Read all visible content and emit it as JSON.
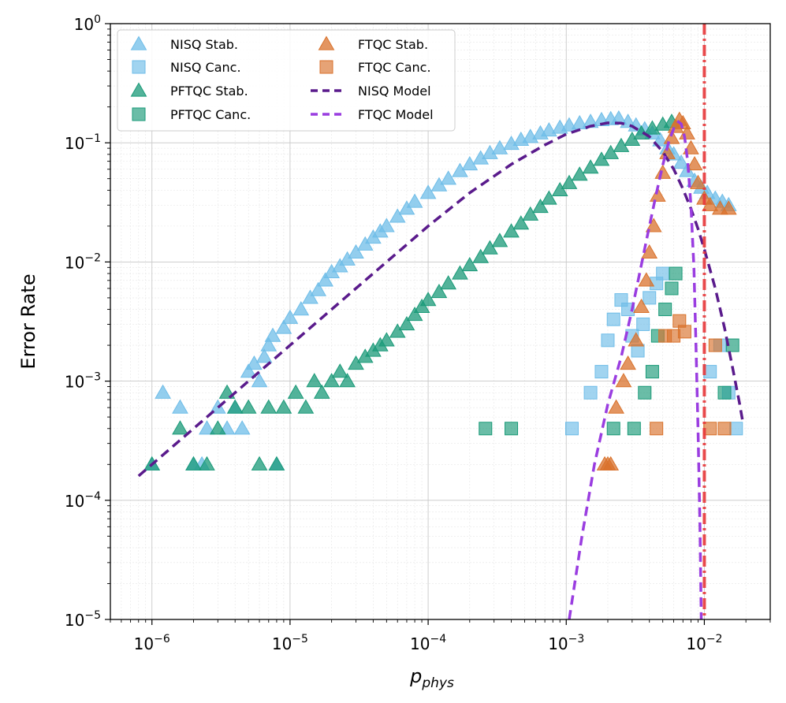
{
  "chart_data": {
    "type": "scatter",
    "xscale": "log",
    "yscale": "log",
    "xlim": [
      5e-07,
      0.03
    ],
    "ylim": [
      1e-05,
      1
    ],
    "x_major_ticks": [
      {
        "value": 1e-06,
        "base": "10",
        "exp": "−6"
      },
      {
        "value": 1e-05,
        "base": "10",
        "exp": "−5"
      },
      {
        "value": 0.0001,
        "base": "10",
        "exp": "−4"
      },
      {
        "value": 0.001,
        "base": "10",
        "exp": "−3"
      },
      {
        "value": 0.01,
        "base": "10",
        "exp": "−2"
      }
    ],
    "y_major_ticks": [
      {
        "value": 1e-05,
        "base": "10",
        "exp": "−5"
      },
      {
        "value": 0.0001,
        "base": "10",
        "exp": "−4"
      },
      {
        "value": 0.001,
        "base": "10",
        "exp": "−3"
      },
      {
        "value": 0.01,
        "base": "10",
        "exp": "−2"
      },
      {
        "value": 0.1,
        "base": "10",
        "exp": "−1"
      },
      {
        "value": 1,
        "base": "10",
        "exp": "0"
      }
    ],
    "xlabel_main": "p",
    "xlabel_sub": "phys",
    "ylabel": "Error Rate",
    "grid": true,
    "legend_position": "upper-left",
    "threshold_line": {
      "x": 0.01,
      "color": "#e8393b",
      "style": "dash-dot"
    },
    "colors": {
      "nisq": "#6fbde8",
      "pftqc": "#1a9a78",
      "ftqc": "#d9722c",
      "nisq_model": "#5a1b8c",
      "ftqc_model": "#9a3de0",
      "threshold": "#e8393b",
      "grid": "#c8c8c8"
    },
    "series": [
      {
        "name": "NISQ Stab.",
        "marker": "triangle",
        "color": "#6fbde8",
        "points": [
          [
            1e-06,
            0.0002
          ],
          [
            1.2e-06,
            0.0008
          ],
          [
            1.6e-06,
            0.0006
          ],
          [
            2e-06,
            0.0002
          ],
          [
            2.3e-06,
            0.0002
          ],
          [
            2.5e-06,
            0.0004
          ],
          [
            3e-06,
            0.0006
          ],
          [
            3.5e-06,
            0.0004
          ],
          [
            4e-06,
            0.0006
          ],
          [
            4.5e-06,
            0.0004
          ],
          [
            5e-06,
            0.0012
          ],
          [
            5.5e-06,
            0.0014
          ],
          [
            6e-06,
            0.001
          ],
          [
            6.5e-06,
            0.0016
          ],
          [
            7e-06,
            0.002
          ],
          [
            7.5e-06,
            0.0024
          ],
          [
            8e-06,
            0.0002
          ],
          [
            9e-06,
            0.0028
          ],
          [
            1e-05,
            0.0034
          ],
          [
            1.2e-05,
            0.004
          ],
          [
            1.4e-05,
            0.005
          ],
          [
            1.6e-05,
            0.0058
          ],
          [
            1.8e-05,
            0.007
          ],
          [
            2e-05,
            0.0082
          ],
          [
            2.3e-05,
            0.0092
          ],
          [
            2.6e-05,
            0.0105
          ],
          [
            3e-05,
            0.012
          ],
          [
            3.5e-05,
            0.014
          ],
          [
            4e-05,
            0.016
          ],
          [
            4.5e-05,
            0.018
          ],
          [
            5e-05,
            0.02
          ],
          [
            6e-05,
            0.024
          ],
          [
            7e-05,
            0.028
          ],
          [
            8e-05,
            0.032
          ],
          [
            0.0001,
            0.038
          ],
          [
            0.00012,
            0.044
          ],
          [
            0.00014,
            0.05
          ],
          [
            0.00017,
            0.058
          ],
          [
            0.0002,
            0.066
          ],
          [
            0.00024,
            0.074
          ],
          [
            0.00028,
            0.082
          ],
          [
            0.00033,
            0.09
          ],
          [
            0.0004,
            0.098
          ],
          [
            0.00047,
            0.106
          ],
          [
            0.00055,
            0.112
          ],
          [
            0.00065,
            0.12
          ],
          [
            0.00075,
            0.127
          ],
          [
            0.0009,
            0.134
          ],
          [
            0.00105,
            0.14
          ],
          [
            0.00125,
            0.146
          ],
          [
            0.0015,
            0.15
          ],
          [
            0.0018,
            0.155
          ],
          [
            0.0021,
            0.158
          ],
          [
            0.0024,
            0.16
          ],
          [
            0.0028,
            0.15
          ],
          [
            0.0032,
            0.14
          ],
          [
            0.0037,
            0.13
          ],
          [
            0.0042,
            0.12
          ],
          [
            0.0048,
            0.105
          ],
          [
            0.0054,
            0.09
          ],
          [
            0.006,
            0.08
          ],
          [
            0.0068,
            0.068
          ],
          [
            0.0075,
            0.058
          ],
          [
            0.0085,
            0.048
          ],
          [
            0.0095,
            0.042
          ],
          [
            0.0105,
            0.038
          ],
          [
            0.012,
            0.034
          ],
          [
            0.0135,
            0.032
          ],
          [
            0.015,
            0.03
          ]
        ]
      },
      {
        "name": "NISQ Canc.",
        "marker": "square",
        "color": "#6fbde8",
        "points": [
          [
            0.0011,
            0.0004
          ],
          [
            0.0015,
            0.0008
          ],
          [
            0.0018,
            0.0012
          ],
          [
            0.002,
            0.0022
          ],
          [
            0.0022,
            0.0033
          ],
          [
            0.0025,
            0.0048
          ],
          [
            0.0028,
            0.004
          ],
          [
            0.003,
            0.0024
          ],
          [
            0.0033,
            0.0018
          ],
          [
            0.0036,
            0.003
          ],
          [
            0.004,
            0.005
          ],
          [
            0.0045,
            0.0066
          ],
          [
            0.005,
            0.008
          ],
          [
            0.011,
            0.0012
          ],
          [
            0.013,
            0.002
          ],
          [
            0.015,
            0.0008
          ],
          [
            0.017,
            0.0004
          ]
        ]
      },
      {
        "name": "PFTQC Stab.",
        "marker": "triangle",
        "color": "#1a9a78",
        "points": [
          [
            1e-06,
            0.0002
          ],
          [
            1.6e-06,
            0.0004
          ],
          [
            2e-06,
            0.0002
          ],
          [
            2.5e-06,
            0.0002
          ],
          [
            3e-06,
            0.0004
          ],
          [
            3.5e-06,
            0.0008
          ],
          [
            4e-06,
            0.0006
          ],
          [
            5e-06,
            0.0006
          ],
          [
            6e-06,
            0.0002
          ],
          [
            7e-06,
            0.0006
          ],
          [
            8e-06,
            0.0002
          ],
          [
            9e-06,
            0.0006
          ],
          [
            1.1e-05,
            0.0008
          ],
          [
            1.3e-05,
            0.0006
          ],
          [
            1.5e-05,
            0.001
          ],
          [
            1.7e-05,
            0.0008
          ],
          [
            2e-05,
            0.001
          ],
          [
            2.3e-05,
            0.0012
          ],
          [
            2.6e-05,
            0.001
          ],
          [
            3e-05,
            0.0014
          ],
          [
            3.5e-05,
            0.0016
          ],
          [
            4e-05,
            0.0018
          ],
          [
            4.5e-05,
            0.002
          ],
          [
            5e-05,
            0.0022
          ],
          [
            6e-05,
            0.0026
          ],
          [
            7e-05,
            0.003
          ],
          [
            8e-05,
            0.0036
          ],
          [
            9e-05,
            0.0042
          ],
          [
            0.0001,
            0.0048
          ],
          [
            0.00012,
            0.0056
          ],
          [
            0.00014,
            0.0066
          ],
          [
            0.00017,
            0.008
          ],
          [
            0.0002,
            0.0094
          ],
          [
            0.00024,
            0.011
          ],
          [
            0.00028,
            0.013
          ],
          [
            0.00033,
            0.015
          ],
          [
            0.0004,
            0.018
          ],
          [
            0.00047,
            0.021
          ],
          [
            0.00055,
            0.025
          ],
          [
            0.00065,
            0.029
          ],
          [
            0.00075,
            0.034
          ],
          [
            0.0009,
            0.04
          ],
          [
            0.00105,
            0.046
          ],
          [
            0.00125,
            0.054
          ],
          [
            0.0015,
            0.062
          ],
          [
            0.0018,
            0.072
          ],
          [
            0.0021,
            0.082
          ],
          [
            0.0025,
            0.094
          ],
          [
            0.003,
            0.106
          ],
          [
            0.0035,
            0.12
          ],
          [
            0.0042,
            0.132
          ],
          [
            0.005,
            0.142
          ],
          [
            0.0058,
            0.15
          ]
        ]
      },
      {
        "name": "PFTQC Canc.",
        "marker": "square",
        "color": "#1a9a78",
        "points": [
          [
            0.00026,
            0.0004
          ],
          [
            0.0004,
            0.0004
          ],
          [
            0.0022,
            0.0004
          ],
          [
            0.0031,
            0.0004
          ],
          [
            0.0037,
            0.0008
          ],
          [
            0.0042,
            0.0012
          ],
          [
            0.0046,
            0.0024
          ],
          [
            0.0052,
            0.004
          ],
          [
            0.0058,
            0.006
          ],
          [
            0.0062,
            0.008
          ],
          [
            0.014,
            0.0008
          ],
          [
            0.016,
            0.002
          ]
        ]
      },
      {
        "name": "FTQC Stab.",
        "marker": "triangle",
        "color": "#d9722c",
        "points": [
          [
            0.0019,
            0.0002
          ],
          [
            0.002,
            0.0002
          ],
          [
            0.0021,
            0.0002
          ],
          [
            0.0023,
            0.0006
          ],
          [
            0.0026,
            0.001
          ],
          [
            0.0028,
            0.0014
          ],
          [
            0.0032,
            0.0022
          ],
          [
            0.0035,
            0.0042
          ],
          [
            0.0038,
            0.007
          ],
          [
            0.004,
            0.012
          ],
          [
            0.0043,
            0.02
          ],
          [
            0.0046,
            0.036
          ],
          [
            0.005,
            0.056
          ],
          [
            0.0054,
            0.082
          ],
          [
            0.0058,
            0.11
          ],
          [
            0.0062,
            0.136
          ],
          [
            0.0066,
            0.156
          ],
          [
            0.007,
            0.146
          ],
          [
            0.0075,
            0.12
          ],
          [
            0.008,
            0.09
          ],
          [
            0.0085,
            0.066
          ],
          [
            0.009,
            0.046
          ],
          [
            0.01,
            0.034
          ],
          [
            0.011,
            0.03
          ],
          [
            0.013,
            0.028
          ],
          [
            0.015,
            0.028
          ]
        ]
      },
      {
        "name": "FTQC Canc.",
        "marker": "square",
        "color": "#d9722c",
        "points": [
          [
            0.0045,
            0.0004
          ],
          [
            0.0052,
            0.0024
          ],
          [
            0.006,
            0.0024
          ],
          [
            0.0066,
            0.0032
          ],
          [
            0.0072,
            0.0026
          ],
          [
            0.011,
            0.0004
          ],
          [
            0.012,
            0.002
          ],
          [
            0.014,
            0.0004
          ]
        ]
      }
    ],
    "models": [
      {
        "name": "NISQ Model",
        "color": "#5a1b8c",
        "points": [
          [
            8e-07,
            0.00016
          ],
          [
            2e-06,
            0.0004
          ],
          [
            5e-06,
            0.001
          ],
          [
            1e-05,
            0.002
          ],
          [
            2e-05,
            0.004
          ],
          [
            5e-05,
            0.01
          ],
          [
            0.0001,
            0.02
          ],
          [
            0.0002,
            0.038
          ],
          [
            0.0004,
            0.066
          ],
          [
            0.0007,
            0.096
          ],
          [
            0.001,
            0.118
          ],
          [
            0.0015,
            0.138
          ],
          [
            0.002,
            0.147
          ],
          [
            0.0025,
            0.146
          ],
          [
            0.003,
            0.138
          ],
          [
            0.004,
            0.113
          ],
          [
            0.005,
            0.084
          ],
          [
            0.006,
            0.06
          ],
          [
            0.007,
            0.041
          ],
          [
            0.008,
            0.028
          ],
          [
            0.009,
            0.019
          ],
          [
            0.01,
            0.0128
          ],
          [
            0.012,
            0.006
          ],
          [
            0.014,
            0.0028
          ],
          [
            0.016,
            0.0013
          ],
          [
            0.018,
            0.00065
          ],
          [
            0.019,
            0.00045
          ]
        ]
      },
      {
        "name": "FTQC Model",
        "color": "#9a3de0",
        "points": [
          [
            0.00105,
            1e-05
          ],
          [
            0.0013,
            5e-05
          ],
          [
            0.0016,
            0.0002
          ],
          [
            0.002,
            0.00064
          ],
          [
            0.0025,
            0.0016
          ],
          [
            0.003,
            0.004
          ],
          [
            0.0035,
            0.0095
          ],
          [
            0.004,
            0.02
          ],
          [
            0.0045,
            0.038
          ],
          [
            0.005,
            0.065
          ],
          [
            0.0055,
            0.1
          ],
          [
            0.006,
            0.132
          ],
          [
            0.0065,
            0.15
          ],
          [
            0.0068,
            0.144
          ],
          [
            0.0072,
            0.112
          ],
          [
            0.0076,
            0.068
          ],
          [
            0.008,
            0.03
          ],
          [
            0.0084,
            0.009
          ],
          [
            0.0087,
            0.002
          ],
          [
            0.009,
            0.0004
          ],
          [
            0.0093,
            6e-05
          ],
          [
            0.0095,
            1e-05
          ]
        ]
      }
    ],
    "legend": [
      {
        "label": "NISQ Stab.",
        "kind": "triangle",
        "color": "#6fbde8"
      },
      {
        "label": "NISQ Canc.",
        "kind": "square",
        "color": "#6fbde8"
      },
      {
        "label": "PFTQC Stab.",
        "kind": "triangle",
        "color": "#1a9a78"
      },
      {
        "label": "PFTQC Canc.",
        "kind": "square",
        "color": "#1a9a78"
      },
      {
        "label": "FTQC Stab.",
        "kind": "triangle",
        "color": "#d9722c"
      },
      {
        "label": "FTQC Canc.",
        "kind": "square",
        "color": "#d9722c"
      },
      {
        "label": "NISQ Model",
        "kind": "dash",
        "color": "#5a1b8c"
      },
      {
        "label": "FTQC Model",
        "kind": "dash",
        "color": "#9a3de0"
      }
    ]
  }
}
